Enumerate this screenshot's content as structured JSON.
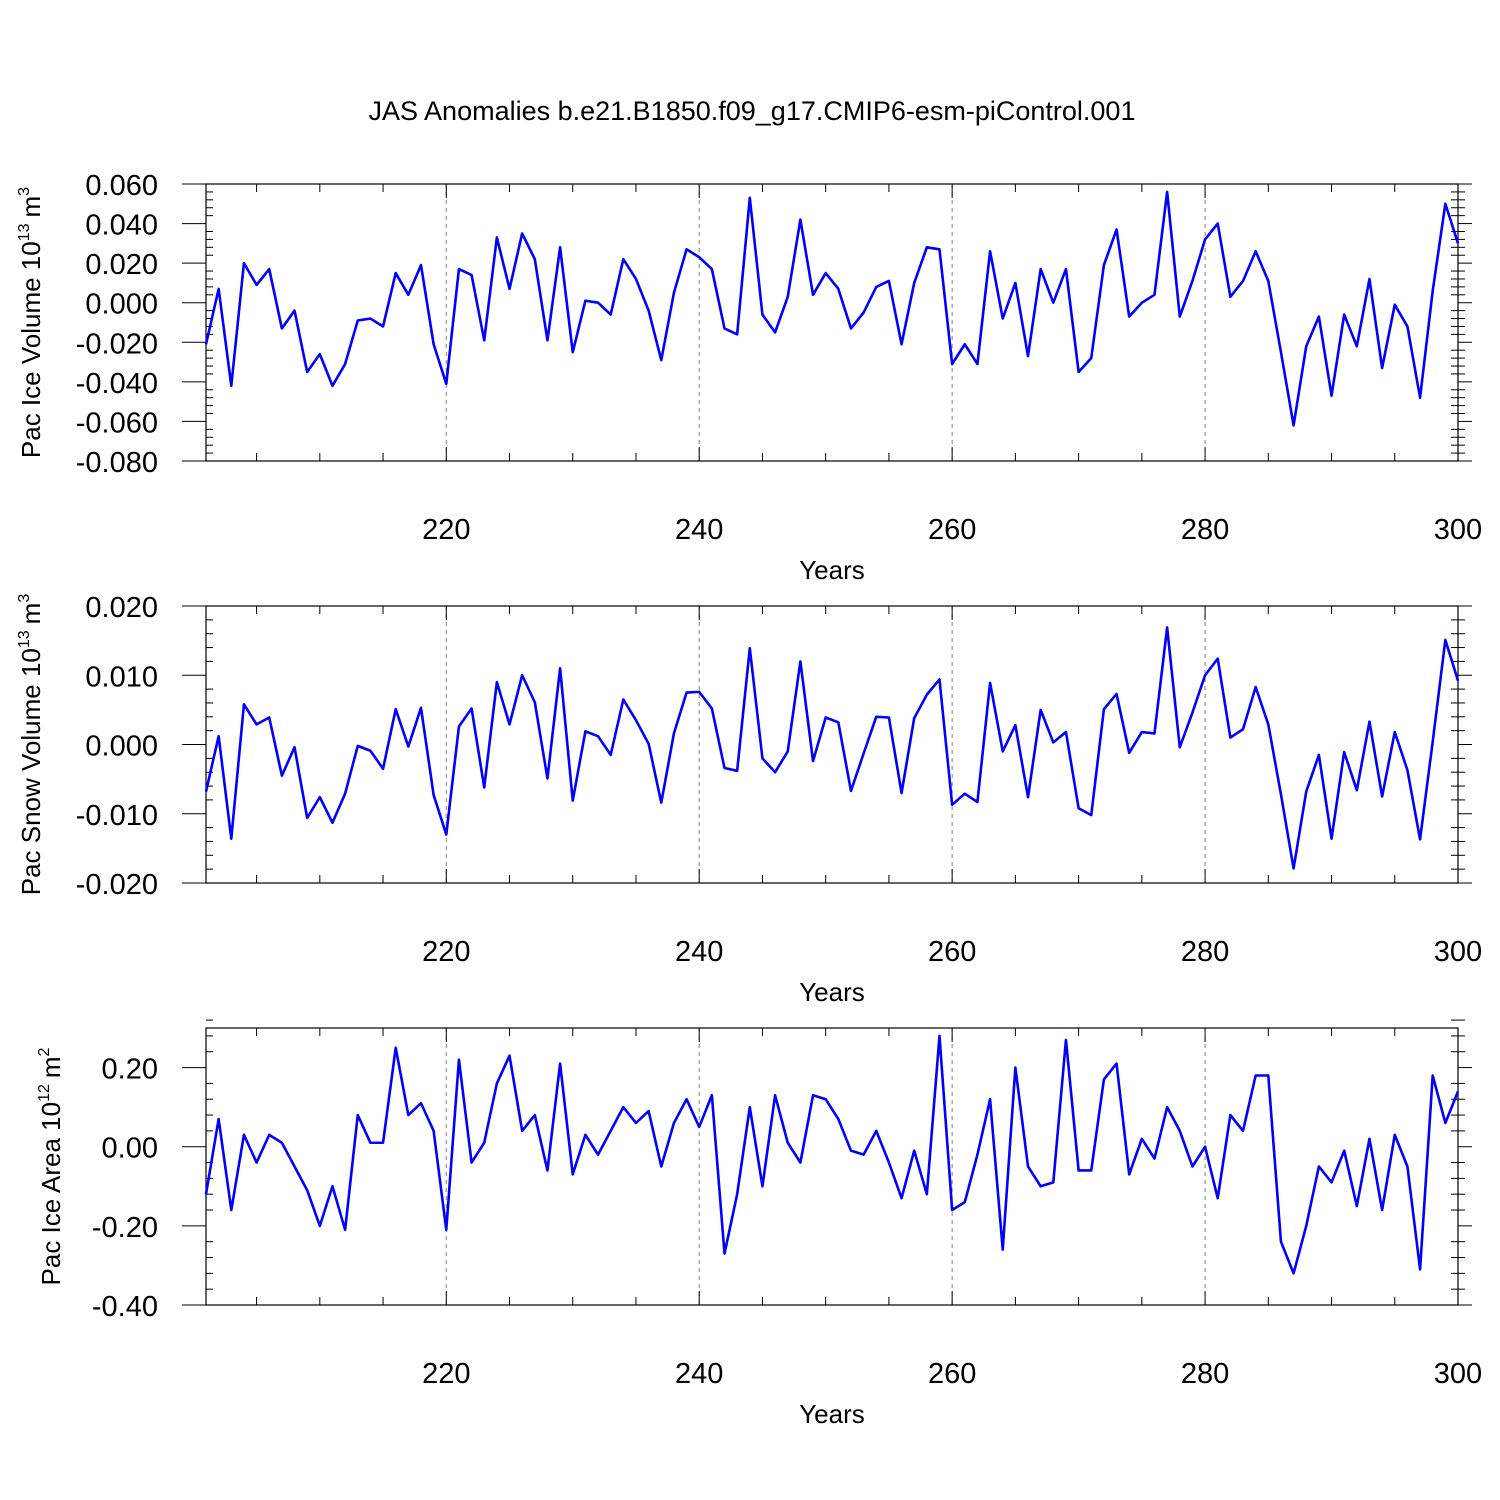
{
  "figure": {
    "title": "JAS Anomalies b.e21.B1850.f09_g17.CMIP6-esm-piControl.001",
    "line_color": "#0000ff"
  },
  "chart_data": [
    {
      "type": "line",
      "ylabel_main": "Pac Ice Volume 10",
      "ylabel_exp": "13",
      "ylabel_unit": "m",
      "ylabel_unit_exp": "3",
      "xlabel": "Years",
      "xlim": [
        201,
        300
      ],
      "ylim": [
        -0.08,
        0.06
      ],
      "yticks": [
        -0.08,
        -0.06,
        -0.04,
        -0.02,
        0.0,
        0.02,
        0.04,
        0.06
      ],
      "ytick_labels": [
        "-0.080",
        "-0.060",
        "-0.040",
        "-0.020",
        "0.000",
        "0.020",
        "0.040",
        "0.060"
      ],
      "xticks": [
        220,
        240,
        260,
        280,
        300
      ],
      "xtick_labels": [
        "220",
        "240",
        "260",
        "280",
        "300"
      ],
      "grid_x": [
        220,
        240,
        260,
        280
      ],
      "x_start": 201,
      "series": [
        {
          "name": "Pac Ice Volume",
          "values": [
            -0.021,
            0.007,
            -0.042,
            0.02,
            0.009,
            0.017,
            -0.013,
            -0.004,
            -0.035,
            -0.026,
            -0.042,
            -0.031,
            -0.009,
            -0.008,
            -0.012,
            0.015,
            0.004,
            0.019,
            -0.021,
            -0.041,
            0.017,
            0.014,
            -0.019,
            0.033,
            0.007,
            0.035,
            0.022,
            -0.019,
            0.028,
            -0.025,
            0.001,
            0.0,
            -0.006,
            0.022,
            0.012,
            -0.004,
            -0.029,
            0.005,
            0.027,
            0.023,
            0.017,
            -0.013,
            -0.016,
            0.053,
            -0.006,
            -0.015,
            0.003,
            0.042,
            0.004,
            0.015,
            0.007,
            -0.013,
            -0.005,
            0.008,
            0.011,
            -0.021,
            0.01,
            0.028,
            0.027,
            -0.031,
            -0.021,
            -0.031,
            0.026,
            -0.008,
            0.01,
            -0.027,
            0.017,
            0.0,
            0.017,
            -0.035,
            -0.028,
            0.019,
            0.037,
            -0.007,
            0.0,
            0.004,
            0.056,
            -0.007,
            0.011,
            0.032,
            0.04,
            0.003,
            0.011,
            0.026,
            0.011,
            -0.025,
            -0.062,
            -0.022,
            -0.007,
            -0.047,
            -0.006,
            -0.022,
            0.012,
            -0.033,
            -0.001,
            -0.012,
            -0.048,
            0.006,
            0.05,
            0.03
          ]
        }
      ]
    },
    {
      "type": "line",
      "ylabel_main": "Pac Snow Volume 10",
      "ylabel_exp": "13",
      "ylabel_unit": "m",
      "ylabel_unit_exp": "3",
      "xlabel": "Years",
      "xlim": [
        201,
        300
      ],
      "ylim": [
        -0.02,
        0.02
      ],
      "yticks": [
        -0.02,
        -0.01,
        0.0,
        0.01,
        0.02
      ],
      "ytick_labels": [
        "-0.020",
        "-0.010",
        "0.000",
        "0.010",
        "0.020"
      ],
      "xticks": [
        220,
        240,
        260,
        280,
        300
      ],
      "xtick_labels": [
        "220",
        "240",
        "260",
        "280",
        "300"
      ],
      "grid_x": [
        220,
        240,
        260,
        280
      ],
      "x_start": 201,
      "series": [
        {
          "name": "Pac Snow Volume",
          "values": [
            -0.0068,
            0.0012,
            -0.0136,
            0.0058,
            0.0029,
            0.0039,
            -0.0045,
            -0.0004,
            -0.0106,
            -0.0076,
            -0.0113,
            -0.0071,
            -0.0002,
            -0.0009,
            -0.0035,
            0.0051,
            -0.0003,
            0.0053,
            -0.0073,
            -0.013,
            0.0026,
            0.0052,
            -0.0062,
            0.009,
            0.0029,
            0.01,
            0.0061,
            -0.0049,
            0.011,
            -0.0081,
            0.0019,
            0.0012,
            -0.0015,
            0.0065,
            0.0035,
            0.0001,
            -0.0084,
            0.0016,
            0.0075,
            0.0076,
            0.0052,
            -0.0034,
            -0.0038,
            0.0139,
            -0.002,
            -0.004,
            -0.001,
            0.012,
            -0.0024,
            0.0039,
            0.0032,
            -0.0067,
            -0.0013,
            0.004,
            0.0039,
            -0.007,
            0.0038,
            0.0072,
            0.0094,
            -0.0087,
            -0.0071,
            -0.0083,
            0.0089,
            -0.001,
            0.0028,
            -0.0076,
            0.005,
            0.0003,
            0.0018,
            -0.0092,
            -0.0102,
            0.0051,
            0.0073,
            -0.0012,
            0.0018,
            0.0016,
            0.0169,
            -0.0004,
            0.0046,
            0.01,
            0.0124,
            0.001,
            0.0022,
            0.0083,
            0.0029,
            -0.0072,
            -0.0179,
            -0.0068,
            -0.0015,
            -0.0136,
            -0.0011,
            -0.0066,
            0.0033,
            -0.0075,
            0.0018,
            -0.0037,
            -0.0137,
            0.0004,
            0.0151,
            0.0092
          ]
        }
      ]
    },
    {
      "type": "line",
      "ylabel_main": "Pac Ice Area 10",
      "ylabel_exp": "12",
      "ylabel_unit": "m",
      "ylabel_unit_exp": "2",
      "xlabel": "Years",
      "xlim": [
        201,
        300
      ],
      "ylim": [
        -0.4,
        0.3
      ],
      "yticks": [
        -0.4,
        -0.2,
        0.0,
        0.2
      ],
      "ytick_labels": [
        "-0.40",
        "-0.20",
        "0.00",
        "0.20"
      ],
      "xticks": [
        220,
        240,
        260,
        280,
        300
      ],
      "xtick_labels": [
        "220",
        "240",
        "260",
        "280",
        "300"
      ],
      "grid_x": [
        220,
        240,
        260,
        280
      ],
      "x_start": 201,
      "series": [
        {
          "name": "Pac Ice Area",
          "values": [
            -0.12,
            0.07,
            -0.16,
            0.03,
            -0.04,
            0.03,
            0.01,
            -0.05,
            -0.11,
            -0.2,
            -0.1,
            -0.21,
            0.08,
            0.01,
            0.01,
            0.25,
            0.08,
            0.11,
            0.04,
            -0.21,
            0.22,
            -0.04,
            0.01,
            0.16,
            0.23,
            0.04,
            0.08,
            -0.06,
            0.21,
            -0.07,
            0.03,
            -0.02,
            0.04,
            0.1,
            0.06,
            0.09,
            -0.05,
            0.06,
            0.12,
            0.05,
            0.13,
            -0.27,
            -0.12,
            0.1,
            -0.1,
            0.13,
            0.01,
            -0.04,
            0.13,
            0.12,
            0.07,
            -0.01,
            -0.02,
            0.04,
            -0.04,
            -0.13,
            -0.01,
            -0.12,
            0.28,
            -0.16,
            -0.14,
            -0.02,
            0.12,
            -0.26,
            0.2,
            -0.05,
            -0.1,
            -0.09,
            0.27,
            -0.06,
            -0.06,
            0.17,
            0.21,
            -0.07,
            0.02,
            -0.03,
            0.1,
            0.04,
            -0.05,
            0.0,
            -0.13,
            0.08,
            0.04,
            0.18,
            0.18,
            -0.24,
            -0.32,
            -0.2,
            -0.05,
            -0.09,
            -0.01,
            -0.15,
            0.02,
            -0.16,
            0.03,
            -0.05,
            -0.31,
            0.18,
            0.06,
            0.14
          ]
        }
      ]
    }
  ]
}
